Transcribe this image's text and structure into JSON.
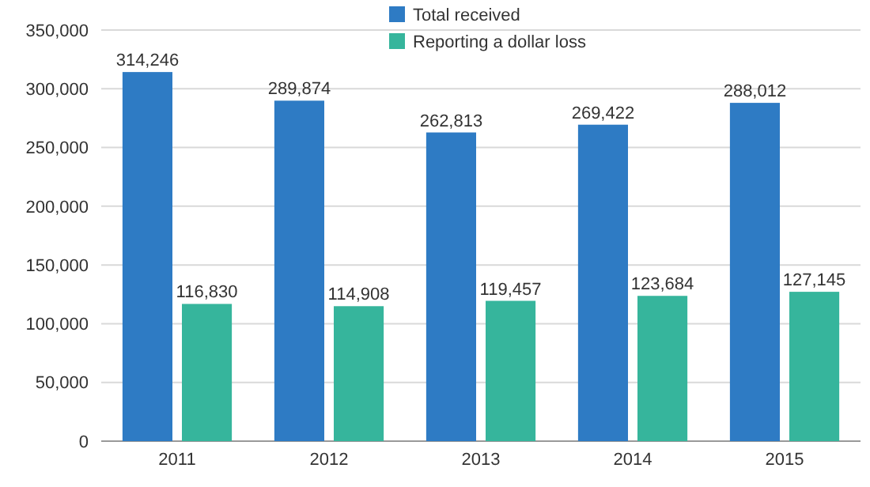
{
  "chart_data": {
    "type": "bar",
    "categories": [
      "2011",
      "2012",
      "2013",
      "2014",
      "2015"
    ],
    "series": [
      {
        "name": "Total received",
        "color": "#2e7bc4",
        "values": [
          314246,
          289874,
          262813,
          269422,
          288012
        ],
        "value_labels": [
          "314,246",
          "289,874",
          "262,813",
          "269,422",
          "288,012"
        ]
      },
      {
        "name": "Reporting a dollar loss",
        "color": "#36b59c",
        "values": [
          116830,
          114908,
          119457,
          123684,
          127145
        ],
        "value_labels": [
          "116,830",
          "114,908",
          "119,457",
          "123,684",
          "127,145"
        ]
      }
    ],
    "ylim": [
      0,
      350000
    ],
    "yticks": [
      {
        "value": 0,
        "label": "0"
      },
      {
        "value": 50000,
        "label": "50,000"
      },
      {
        "value": 100000,
        "label": "100,000"
      },
      {
        "value": 150000,
        "label": "150,000"
      },
      {
        "value": 200000,
        "label": "200,000"
      },
      {
        "value": 250000,
        "label": "250,000"
      },
      {
        "value": 300000,
        "label": "300,000"
      },
      {
        "value": 350000,
        "label": "350,000"
      }
    ],
    "grid": "y",
    "legend": "top"
  }
}
